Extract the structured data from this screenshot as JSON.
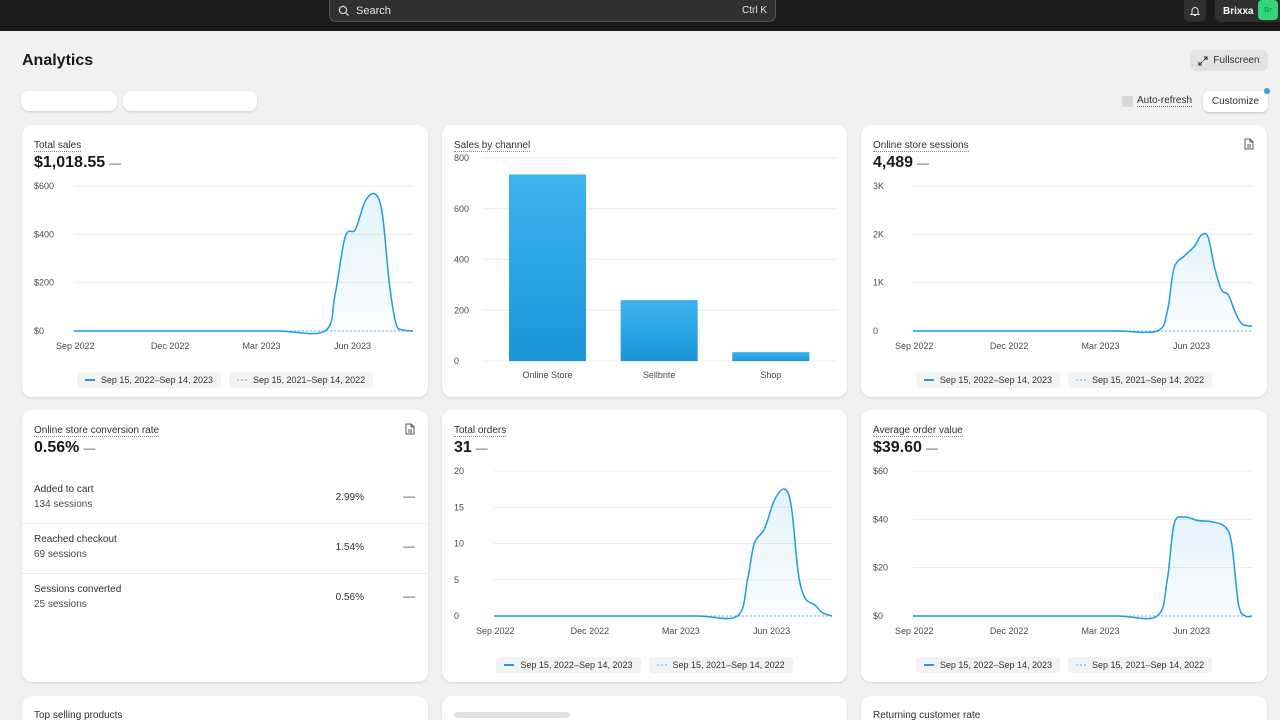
{
  "topbar": {
    "search_placeholder": "Search",
    "search_shortcut": "Ctrl K",
    "store_name": "Brixxa",
    "avatar_initials": "Br"
  },
  "page": {
    "title": "Analytics",
    "fullscreen_label": "Fullscreen",
    "auto_refresh_label": "Auto-refresh",
    "customize_label": "Customize"
  },
  "legend": {
    "current": "Sep 15, 2022–Sep 14, 2023",
    "previous": "Sep 15, 2021–Sep 14, 2022"
  },
  "cards": {
    "total_sales": {
      "title": "Total sales",
      "value": "$1,018.55",
      "dash": "—"
    },
    "sales_by_channel": {
      "title": "Sales by channel"
    },
    "sessions": {
      "title": "Online store sessions",
      "value": "4,489",
      "dash": "—"
    },
    "conversion": {
      "title": "Online store conversion rate",
      "value": "0.56%",
      "dash": "—",
      "rows": [
        {
          "label": "Added to cart",
          "sessions": "134 sessions",
          "pct": "2.99%",
          "dash": "—"
        },
        {
          "label": "Reached checkout",
          "sessions": "69 sessions",
          "pct": "1.54%",
          "dash": "—"
        },
        {
          "label": "Sessions converted",
          "sessions": "25 sessions",
          "pct": "0.56%",
          "dash": "—"
        }
      ]
    },
    "orders": {
      "title": "Total orders",
      "value": "31",
      "dash": "—"
    },
    "aov": {
      "title": "Average order value",
      "value": "$39.60",
      "dash": "—"
    },
    "top_products": {
      "title": "Top selling products"
    },
    "returning": {
      "title": "Returning customer rate"
    }
  },
  "colors": {
    "accent": "#1f9be0",
    "previous": "#9ccff0",
    "bar_top": "#3db4ee",
    "bar_bottom": "#1a94d8"
  },
  "chart_data": [
    {
      "type": "area",
      "id": "total_sales",
      "x_ticks": [
        "Sep 2022",
        "Dec 2022",
        "Mar 2023",
        "Jun 2023"
      ],
      "y_ticks": [
        "$0",
        "$200",
        "$400",
        "$600"
      ],
      "ylim": [
        0,
        600
      ],
      "series": [
        {
          "name": "Sep 15, 2022–Sep 14, 2023",
          "points": [
            [
              0,
              0
            ],
            [
              0.2,
              0
            ],
            [
              0.4,
              0
            ],
            [
              0.6,
              0
            ],
            [
              0.74,
              0
            ],
            [
              0.77,
              150
            ],
            [
              0.8,
              390
            ],
            [
              0.83,
              420
            ],
            [
              0.86,
              540
            ],
            [
              0.89,
              565
            ],
            [
              0.91,
              480
            ],
            [
              0.93,
              200
            ],
            [
              0.95,
              30
            ],
            [
              0.97,
              5
            ],
            [
              1,
              0
            ]
          ]
        },
        {
          "name": "Sep 15, 2021–Sep 14, 2022",
          "points": [
            [
              0,
              0
            ],
            [
              1,
              0
            ]
          ]
        }
      ]
    },
    {
      "type": "bar",
      "id": "sales_by_channel",
      "categories": [
        "Online Store",
        "Sellbrite",
        "Shop"
      ],
      "values": [
        735,
        240,
        35
      ],
      "y_ticks": [
        "0",
        "200",
        "400",
        "600",
        "800"
      ],
      "ylim": [
        0,
        800
      ]
    },
    {
      "type": "area",
      "id": "sessions",
      "x_ticks": [
        "Sep 2022",
        "Dec 2022",
        "Mar 2023",
        "Jun 2023"
      ],
      "y_ticks": [
        "0",
        "1K",
        "2K",
        "3K"
      ],
      "ylim": [
        0,
        3000
      ],
      "series": [
        {
          "name": "Sep 15, 2022–Sep 14, 2023",
          "points": [
            [
              0,
              0
            ],
            [
              0.2,
              0
            ],
            [
              0.4,
              0
            ],
            [
              0.6,
              0
            ],
            [
              0.72,
              0
            ],
            [
              0.75,
              400
            ],
            [
              0.77,
              1300
            ],
            [
              0.8,
              1550
            ],
            [
              0.83,
              1750
            ],
            [
              0.85,
              1980
            ],
            [
              0.87,
              1950
            ],
            [
              0.89,
              1300
            ],
            [
              0.91,
              850
            ],
            [
              0.93,
              750
            ],
            [
              0.95,
              400
            ],
            [
              0.97,
              150
            ],
            [
              1,
              100
            ]
          ]
        },
        {
          "name": "Sep 15, 2021–Sep 14, 2022",
          "points": [
            [
              0,
              0
            ],
            [
              1,
              0
            ]
          ]
        }
      ]
    },
    {
      "type": "area",
      "id": "orders",
      "x_ticks": [
        "Sep 2022",
        "Dec 2022",
        "Mar 2023",
        "Jun 2023"
      ],
      "y_ticks": [
        "0",
        "5",
        "10",
        "15",
        "20"
      ],
      "ylim": [
        0,
        20
      ],
      "series": [
        {
          "name": "Sep 15, 2022–Sep 14, 2023",
          "points": [
            [
              0,
              0
            ],
            [
              0.2,
              0
            ],
            [
              0.4,
              0
            ],
            [
              0.6,
              0
            ],
            [
              0.72,
              0
            ],
            [
              0.75,
              5
            ],
            [
              0.77,
              10
            ],
            [
              0.8,
              12
            ],
            [
              0.83,
              16
            ],
            [
              0.86,
              17.5
            ],
            [
              0.88,
              15
            ],
            [
              0.9,
              6
            ],
            [
              0.92,
              2.5
            ],
            [
              0.95,
              1.5
            ],
            [
              0.97,
              0.5
            ],
            [
              1,
              0
            ]
          ]
        },
        {
          "name": "Sep 15, 2021–Sep 14, 2022",
          "points": [
            [
              0,
              0
            ],
            [
              1,
              0
            ]
          ]
        }
      ]
    },
    {
      "type": "area",
      "id": "aov",
      "x_ticks": [
        "Sep 2022",
        "Dec 2022",
        "Mar 2023",
        "Jun 2023"
      ],
      "y_ticks": [
        "$0",
        "$20",
        "$40",
        "$60"
      ],
      "ylim": [
        0,
        60
      ],
      "series": [
        {
          "name": "Sep 15, 2022–Sep 14, 2023",
          "points": [
            [
              0,
              0
            ],
            [
              0.2,
              0
            ],
            [
              0.4,
              0
            ],
            [
              0.6,
              0
            ],
            [
              0.72,
              0
            ],
            [
              0.75,
              15
            ],
            [
              0.77,
              38
            ],
            [
              0.8,
              41
            ],
            [
              0.84,
              39.5
            ],
            [
              0.88,
              39
            ],
            [
              0.92,
              37
            ],
            [
              0.94,
              30
            ],
            [
              0.96,
              5
            ],
            [
              0.98,
              0
            ],
            [
              1,
              0
            ]
          ]
        },
        {
          "name": "Sep 15, 2021–Sep 14, 2022",
          "points": [
            [
              0,
              0
            ],
            [
              1,
              0
            ]
          ]
        }
      ]
    }
  ]
}
